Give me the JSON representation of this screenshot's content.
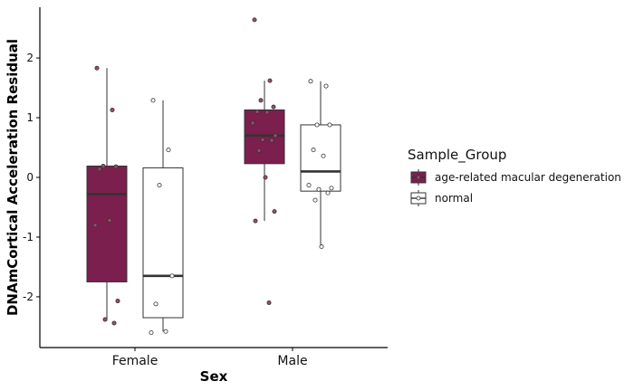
{
  "chart_data": {
    "type": "box",
    "xlabel": "Sex",
    "ylabel": "DNAmCortical Acceleration Residual",
    "categories": [
      "Female",
      "Male"
    ],
    "ylim": [
      -2.85,
      2.85
    ],
    "yticks": [
      -2,
      -1,
      0,
      1,
      2
    ],
    "grid": false,
    "legend": {
      "title": "Sample_Group",
      "position": "right",
      "entries": [
        "age-related macular degeneration",
        "normal"
      ]
    },
    "series": [
      {
        "name": "age-related macular degeneration",
        "color": "#7b1f4e",
        "boxes": [
          {
            "category": "Female",
            "min": -2.4,
            "q1": -1.75,
            "median": -0.28,
            "q3": 0.19,
            "max": 1.83,
            "points": [
              1.83,
              1.13,
              0.19,
              0.18,
              0.14,
              -0.72,
              -0.8,
              -2.07,
              -2.38,
              -2.44
            ]
          },
          {
            "category": "Male",
            "min": -0.73,
            "q1": 0.23,
            "median": 0.7,
            "q3": 1.13,
            "max": 1.62,
            "points": [
              2.64,
              1.62,
              1.29,
              1.18,
              1.1,
              1.09,
              0.91,
              0.7,
              0.63,
              0.62,
              0.45,
              0.0,
              -0.57,
              -0.73,
              -2.1
            ]
          }
        ]
      },
      {
        "name": "normal",
        "color": "#ffffff",
        "boxes": [
          {
            "category": "Female",
            "min": -2.58,
            "q1": -2.35,
            "median": -1.65,
            "q3": 0.16,
            "max": 1.29,
            "points": [
              1.29,
              0.46,
              -0.13,
              -1.65,
              -2.12,
              -2.58,
              -2.6
            ]
          },
          {
            "category": "Male",
            "min": -1.15,
            "q1": -0.23,
            "median": 0.1,
            "q3": 0.88,
            "max": 1.61,
            "points": [
              1.61,
              1.53,
              0.88,
              0.88,
              0.46,
              0.36,
              -0.13,
              -0.18,
              -0.2,
              -0.26,
              -0.38,
              -1.16
            ]
          }
        ]
      }
    ]
  }
}
